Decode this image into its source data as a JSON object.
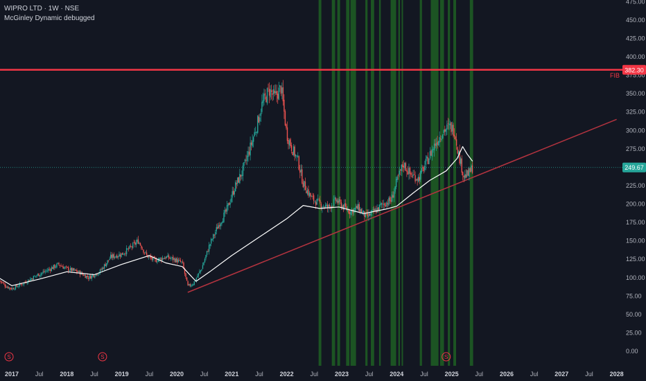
{
  "header": {
    "symbol_line": "WIPRO LTD · 1W · NSE",
    "indicator_line": "McGinley Dynamic debugged"
  },
  "colors": {
    "background": "#131722",
    "up": "#26a69a",
    "down": "#ef5350",
    "fib_line": "#f23645",
    "trendline": "#b2333f",
    "mcginley": "#ffffff",
    "zone": "#1f5f23",
    "last_price": "#26a69a",
    "text": "#b2b5be"
  },
  "chart_data": {
    "type": "candlestick",
    "title": "WIPRO LTD · 1W · NSE",
    "y_axis": {
      "ticks": [
        "0.00",
        "25.00",
        "50.00",
        "75.00",
        "100.00",
        "125.00",
        "150.00",
        "175.00",
        "200.00",
        "225.00",
        "250.00",
        "275.00",
        "300.00",
        "325.00",
        "350.00",
        "375.00",
        "400.00",
        "425.00",
        "450.00",
        "475.00"
      ],
      "ylim": [
        0,
        475
      ],
      "side": "right"
    },
    "x_axis": {
      "ticks": [
        "2017",
        "Jul",
        "2018",
        "Jul",
        "2019",
        "Jul",
        "2020",
        "Jul",
        "2021",
        "Jul",
        "2022",
        "Jul",
        "2023",
        "Jul",
        "2024",
        "Jul",
        "2025",
        "Jul",
        "2026",
        "Jul",
        "2027",
        "Jul",
        "2028"
      ],
      "tick_dates": [
        2017.0,
        2017.5,
        2018.0,
        2018.5,
        2019.0,
        2019.5,
        2020.0,
        2020.5,
        2021.0,
        2021.5,
        2022.0,
        2022.5,
        2023.0,
        2023.5,
        2024.0,
        2024.5,
        2025.0,
        2025.5,
        2026.0,
        2026.5,
        2027.0,
        2027.5,
        2028.0
      ],
      "year_ticks": [
        "2017",
        "2018",
        "2019",
        "2020",
        "2021",
        "2022",
        "2023",
        "2024",
        "2025",
        "2026",
        "2027",
        "2028"
      ]
    },
    "price_path": [
      [
        2016.78,
        96
      ],
      [
        2016.9,
        88
      ],
      [
        2017.0,
        85
      ],
      [
        2017.2,
        92
      ],
      [
        2017.45,
        103
      ],
      [
        2017.65,
        110
      ],
      [
        2017.85,
        118
      ],
      [
        2018.0,
        112
      ],
      [
        2018.2,
        108
      ],
      [
        2018.4,
        100
      ],
      [
        2018.6,
        108
      ],
      [
        2018.8,
        128
      ],
      [
        2019.0,
        132
      ],
      [
        2019.15,
        140
      ],
      [
        2019.3,
        150
      ],
      [
        2019.45,
        130
      ],
      [
        2019.6,
        123
      ],
      [
        2019.8,
        128
      ],
      [
        2019.95,
        125
      ],
      [
        2020.1,
        120
      ],
      [
        2020.2,
        88
      ],
      [
        2020.3,
        92
      ],
      [
        2020.45,
        112
      ],
      [
        2020.6,
        145
      ],
      [
        2020.75,
        170
      ],
      [
        2020.9,
        190
      ],
      [
        2021.05,
        222
      ],
      [
        2021.2,
        245
      ],
      [
        2021.35,
        280
      ],
      [
        2021.45,
        305
      ],
      [
        2021.55,
        335
      ],
      [
        2021.68,
        355
      ],
      [
        2021.78,
        345
      ],
      [
        2021.9,
        358
      ],
      [
        2022.0,
        295
      ],
      [
        2022.1,
        275
      ],
      [
        2022.2,
        260
      ],
      [
        2022.3,
        228
      ],
      [
        2022.45,
        208
      ],
      [
        2022.6,
        200
      ],
      [
        2022.75,
        195
      ],
      [
        2022.9,
        205
      ],
      [
        2023.0,
        198
      ],
      [
        2023.15,
        190
      ],
      [
        2023.3,
        195
      ],
      [
        2023.45,
        182
      ],
      [
        2023.6,
        190
      ],
      [
        2023.75,
        200
      ],
      [
        2023.9,
        205
      ],
      [
        2024.0,
        230
      ],
      [
        2024.12,
        255
      ],
      [
        2024.25,
        240
      ],
      [
        2024.4,
        235
      ],
      [
        2024.55,
        258
      ],
      [
        2024.7,
        282
      ],
      [
        2024.85,
        300
      ],
      [
        2024.97,
        305
      ],
      [
        2025.05,
        300
      ],
      [
        2025.12,
        270
      ],
      [
        2025.22,
        238
      ],
      [
        2025.3,
        240
      ],
      [
        2025.38,
        249.67
      ]
    ],
    "mcginley_path": [
      [
        2016.78,
        99
      ],
      [
        2017.0,
        89
      ],
      [
        2017.5,
        98
      ],
      [
        2018.0,
        108
      ],
      [
        2018.5,
        104
      ],
      [
        2019.0,
        118
      ],
      [
        2019.5,
        130
      ],
      [
        2019.8,
        120
      ],
      [
        2020.1,
        115
      ],
      [
        2020.35,
        95
      ],
      [
        2020.6,
        108
      ],
      [
        2021.0,
        130
      ],
      [
        2021.5,
        155
      ],
      [
        2022.0,
        180
      ],
      [
        2022.3,
        198
      ],
      [
        2022.6,
        194
      ],
      [
        2022.95,
        196
      ],
      [
        2023.4,
        187
      ],
      [
        2023.8,
        193
      ],
      [
        2024.0,
        197
      ],
      [
        2024.3,
        215
      ],
      [
        2024.6,
        232
      ],
      [
        2024.9,
        245
      ],
      [
        2025.1,
        262
      ],
      [
        2025.2,
        278
      ],
      [
        2025.28,
        268
      ],
      [
        2025.38,
        258
      ]
    ],
    "fib_level": {
      "label": "FIB",
      "value": 382.3,
      "value_label": "382.30"
    },
    "last_price": {
      "value": 249.67,
      "value_label": "249.67"
    },
    "trendline": {
      "from": [
        2020.2,
        80
      ],
      "to": [
        2028.0,
        315
      ]
    },
    "highlight_zones": [
      [
        2022.58,
        2022.63
      ],
      [
        2022.82,
        2022.88
      ],
      [
        2022.92,
        2022.97
      ],
      [
        2023.08,
        2023.14
      ],
      [
        2023.16,
        2023.26
      ],
      [
        2023.43,
        2023.47
      ],
      [
        2023.53,
        2023.59
      ],
      [
        2023.68,
        2023.71
      ],
      [
        2023.89,
        2023.99
      ],
      [
        2024.03,
        2024.06
      ],
      [
        2024.09,
        2024.11
      ],
      [
        2024.42,
        2024.46
      ],
      [
        2024.62,
        2024.76
      ],
      [
        2024.79,
        2024.86
      ],
      [
        2024.93,
        2024.97
      ],
      [
        2025.03,
        2025.08
      ],
      [
        2025.33,
        2025.39
      ]
    ],
    "markers": [
      {
        "label": "S",
        "date": 2016.95
      },
      {
        "label": "S",
        "date": 2018.65
      },
      {
        "label": "S",
        "date": 2024.9
      }
    ]
  }
}
